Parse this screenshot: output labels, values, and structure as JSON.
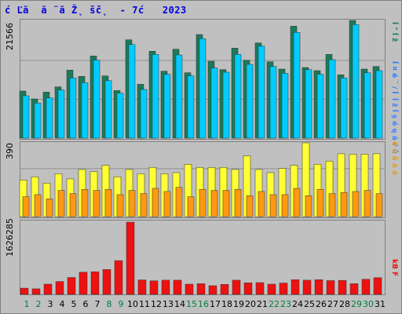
{
  "title": "ć Ľă  ă ¨ă Ž˛ šč˛  - 7ć   2023",
  "legend": {
    "visits": "ĺ ° ĺ ž",
    "pages": "ĺ ¤ é ¨ / ĺ ",
    "hits": "ĺ ž ĺ ş é  ę ă ŕ ů",
    "bandwidth": "ê ó å â ä",
    "kb": "kB F"
  },
  "colors": {
    "visits_dark": "#1a7a5a",
    "visits_light": "#00ccff",
    "pages": "#ffff33",
    "hits": "#ff9911",
    "bandwidth": "#ee1111",
    "weekend": "#008040"
  },
  "chart_data": [
    {
      "type": "bar",
      "ylabel_max": "21566",
      "series": [
        {
          "values": [
            9000,
            7500,
            8800,
            9800,
            13000,
            11800,
            15700,
            11900,
            9100,
            18800,
            10300,
            16600,
            12800,
            17000,
            12500,
            19800,
            14700,
            13100,
            17200,
            14900,
            18200,
            14600,
            13200,
            21400,
            13500,
            12900,
            16000,
            12100,
            22500,
            13200,
            13700
          ]
        },
        {
          "values": [
            8100,
            6700,
            7700,
            9200,
            11500,
            10600,
            14900,
            11000,
            8600,
            17900,
            9300,
            16000,
            12200,
            15900,
            11900,
            19000,
            13400,
            12600,
            16000,
            14100,
            17600,
            13700,
            12400,
            20200,
            13100,
            12200,
            15000,
            11500,
            21700,
            12500,
            12900
          ]
        }
      ]
    },
    {
      "type": "bar",
      "ylabel_max": "390",
      "series": [
        {
          "values": [
            175,
            190,
            160,
            205,
            180,
            225,
            215,
            245,
            190,
            225,
            205,
            235,
            205,
            210,
            250,
            235,
            235,
            235,
            225,
            290,
            225,
            210,
            230,
            245,
            352,
            250,
            265,
            300,
            298,
            298,
            300
          ]
        },
        {
          "values": [
            95,
            105,
            85,
            125,
            110,
            130,
            125,
            130,
            105,
            125,
            110,
            135,
            120,
            140,
            95,
            130,
            125,
            125,
            130,
            100,
            120,
            105,
            105,
            135,
            100,
            130,
            110,
            115,
            120,
            125,
            110
          ]
        }
      ]
    },
    {
      "type": "bar",
      "ylabel_max": "1626285",
      "series": [
        {
          "values": [
            140000,
            125000,
            230000,
            290000,
            380000,
            500000,
            510000,
            560000,
            760000,
            1626285,
            325000,
            305000,
            320000,
            320000,
            230000,
            240000,
            195000,
            225000,
            320000,
            260000,
            265000,
            230000,
            255000,
            330000,
            320000,
            330000,
            310000,
            315000,
            240000,
            340000,
            375000
          ]
        }
      ]
    }
  ],
  "days": [
    "1",
    "2",
    "3",
    "4",
    "5",
    "6",
    "7",
    "8",
    "9",
    "10",
    "11",
    "12",
    "13",
    "14",
    "15",
    "16",
    "17",
    "18",
    "19",
    "20",
    "21",
    "22",
    "23",
    "24",
    "25",
    "26",
    "27",
    "28",
    "29",
    "30",
    "31"
  ],
  "weekend_days": [
    1,
    2,
    8,
    9,
    15,
    16,
    22,
    23,
    29,
    30
  ]
}
